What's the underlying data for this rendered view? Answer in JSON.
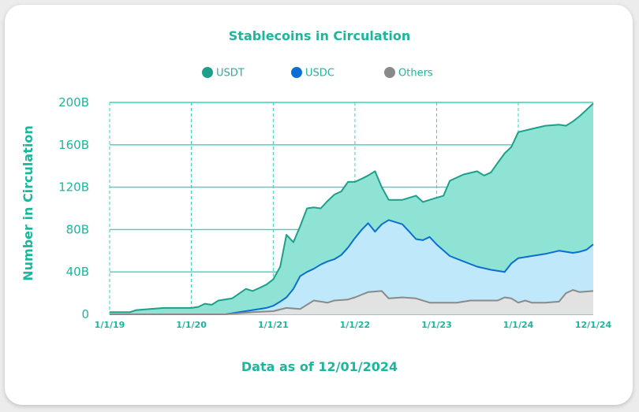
{
  "colors": {
    "accent": "#1bb79b",
    "grid": "#36d6b6",
    "usdt_line": "#1e9f89",
    "usdt_fill": "#8ee3d4",
    "usdc_line": "#0a6fd1",
    "usdc_fill": "#bfe9fb",
    "others_line": "#8a8a8a",
    "others_fill": "#e2e2e2"
  },
  "chart_data": {
    "type": "area",
    "title": "Stablecoins in Circulation",
    "ylabel": "Number in Circulation",
    "footnote": "Data as of 12/01/2024",
    "ylim": [
      0,
      200
    ],
    "yticks": [
      0,
      40,
      80,
      120,
      160,
      200
    ],
    "ytick_labels": [
      "0",
      "40B",
      "80B",
      "120B",
      "160B",
      "200B"
    ],
    "x_domain": [
      "2019-01-01",
      "2024-12-01"
    ],
    "xticks": [
      "2019-01-01",
      "2020-01-01",
      "2021-01-01",
      "2022-01-01",
      "2023-01-01",
      "2024-01-01",
      "2024-12-01"
    ],
    "xtick_labels": [
      "1/1/19",
      "1/1/20",
      "1/1/21",
      "1/1/22",
      "1/1/23",
      "1/1/24",
      "12/1/24"
    ],
    "grid": true,
    "legend_position": "top-center",
    "stacked": false,
    "series": [
      {
        "name": "USDT",
        "color": "#1e9f89",
        "points": [
          [
            "2019-01-01",
            2
          ],
          [
            "2019-04-01",
            2
          ],
          [
            "2019-05-01",
            4
          ],
          [
            "2019-07-01",
            5
          ],
          [
            "2019-09-01",
            6
          ],
          [
            "2019-11-01",
            6
          ],
          [
            "2020-01-01",
            6
          ],
          [
            "2020-02-01",
            7
          ],
          [
            "2020-03-01",
            10
          ],
          [
            "2020-04-01",
            9
          ],
          [
            "2020-05-01",
            13
          ],
          [
            "2020-07-01",
            15
          ],
          [
            "2020-09-01",
            24
          ],
          [
            "2020-10-01",
            22
          ],
          [
            "2020-11-01",
            25
          ],
          [
            "2020-12-01",
            28
          ],
          [
            "2021-01-01",
            33
          ],
          [
            "2021-02-01",
            45
          ],
          [
            "2021-03-01",
            75
          ],
          [
            "2021-04-01",
            68
          ],
          [
            "2021-05-01",
            83
          ],
          [
            "2021-06-01",
            100
          ],
          [
            "2021-07-01",
            101
          ],
          [
            "2021-08-01",
            100
          ],
          [
            "2021-09-01",
            107
          ],
          [
            "2021-10-01",
            113
          ],
          [
            "2021-11-01",
            116
          ],
          [
            "2021-12-01",
            125
          ],
          [
            "2022-01-01",
            125
          ],
          [
            "2022-02-01",
            128
          ],
          [
            "2022-03-01",
            131
          ],
          [
            "2022-04-01",
            135
          ],
          [
            "2022-05-01",
            120
          ],
          [
            "2022-06-01",
            108
          ],
          [
            "2022-08-01",
            108
          ],
          [
            "2022-10-01",
            112
          ],
          [
            "2022-11-01",
            106
          ],
          [
            "2022-12-01",
            108
          ],
          [
            "2023-02-01",
            112
          ],
          [
            "2023-03-01",
            126
          ],
          [
            "2023-05-01",
            132
          ],
          [
            "2023-07-01",
            135
          ],
          [
            "2023-08-01",
            131
          ],
          [
            "2023-09-01",
            134
          ],
          [
            "2023-10-01",
            143
          ],
          [
            "2023-11-01",
            152
          ],
          [
            "2023-12-01",
            158
          ],
          [
            "2024-01-01",
            172
          ],
          [
            "2024-03-01",
            175
          ],
          [
            "2024-05-01",
            178
          ],
          [
            "2024-07-01",
            179
          ],
          [
            "2024-08-01",
            178
          ],
          [
            "2024-09-01",
            182
          ],
          [
            "2024-10-01",
            187
          ],
          [
            "2024-11-01",
            193
          ],
          [
            "2024-12-01",
            199
          ]
        ]
      },
      {
        "name": "USDC",
        "color": "#0a6fd1",
        "points": [
          [
            "2019-01-01",
            0
          ],
          [
            "2020-01-01",
            0
          ],
          [
            "2020-06-01",
            0
          ],
          [
            "2020-08-01",
            2
          ],
          [
            "2020-10-01",
            4
          ],
          [
            "2020-12-01",
            6
          ],
          [
            "2021-01-01",
            8
          ],
          [
            "2021-02-01",
            12
          ],
          [
            "2021-03-01",
            16
          ],
          [
            "2021-04-01",
            24
          ],
          [
            "2021-05-01",
            36
          ],
          [
            "2021-06-01",
            40
          ],
          [
            "2021-07-01",
            43
          ],
          [
            "2021-08-01",
            47
          ],
          [
            "2021-09-01",
            50
          ],
          [
            "2021-10-01",
            52
          ],
          [
            "2021-11-01",
            56
          ],
          [
            "2021-12-01",
            63
          ],
          [
            "2022-01-01",
            72
          ],
          [
            "2022-02-01",
            80
          ],
          [
            "2022-03-01",
            86
          ],
          [
            "2022-04-01",
            78
          ],
          [
            "2022-05-01",
            85
          ],
          [
            "2022-06-01",
            89
          ],
          [
            "2022-08-01",
            85
          ],
          [
            "2022-09-01",
            78
          ],
          [
            "2022-10-01",
            71
          ],
          [
            "2022-11-01",
            70
          ],
          [
            "2022-12-01",
            73
          ],
          [
            "2023-01-01",
            66
          ],
          [
            "2023-03-01",
            55
          ],
          [
            "2023-05-01",
            50
          ],
          [
            "2023-07-01",
            45
          ],
          [
            "2023-09-01",
            42
          ],
          [
            "2023-11-01",
            40
          ],
          [
            "2023-12-01",
            48
          ],
          [
            "2024-01-01",
            53
          ],
          [
            "2024-03-01",
            55
          ],
          [
            "2024-05-01",
            57
          ],
          [
            "2024-07-01",
            60
          ],
          [
            "2024-09-01",
            58
          ],
          [
            "2024-10-01",
            59
          ],
          [
            "2024-11-01",
            61
          ],
          [
            "2024-12-01",
            66
          ]
        ]
      },
      {
        "name": "Others",
        "color": "#8a8a8a",
        "points": [
          [
            "2019-01-01",
            0
          ],
          [
            "2020-06-01",
            0
          ],
          [
            "2020-10-01",
            2
          ],
          [
            "2021-01-01",
            3
          ],
          [
            "2021-03-01",
            6
          ],
          [
            "2021-05-01",
            5
          ],
          [
            "2021-07-01",
            13
          ],
          [
            "2021-09-01",
            11
          ],
          [
            "2021-10-01",
            13
          ],
          [
            "2021-12-01",
            14
          ],
          [
            "2022-01-01",
            16
          ],
          [
            "2022-03-01",
            21
          ],
          [
            "2022-05-01",
            22
          ],
          [
            "2022-06-01",
            15
          ],
          [
            "2022-08-01",
            16
          ],
          [
            "2022-10-01",
            15
          ],
          [
            "2022-12-01",
            11
          ],
          [
            "2023-02-01",
            11
          ],
          [
            "2023-04-01",
            11
          ],
          [
            "2023-06-01",
            13
          ],
          [
            "2023-08-01",
            13
          ],
          [
            "2023-10-01",
            13
          ],
          [
            "2023-11-01",
            16
          ],
          [
            "2023-12-01",
            15
          ],
          [
            "2024-01-01",
            11
          ],
          [
            "2024-02-01",
            13
          ],
          [
            "2024-03-01",
            11
          ],
          [
            "2024-05-01",
            11
          ],
          [
            "2024-07-01",
            12
          ],
          [
            "2024-08-01",
            20
          ],
          [
            "2024-09-01",
            23
          ],
          [
            "2024-10-01",
            21
          ],
          [
            "2024-12-01",
            22
          ]
        ]
      }
    ]
  }
}
